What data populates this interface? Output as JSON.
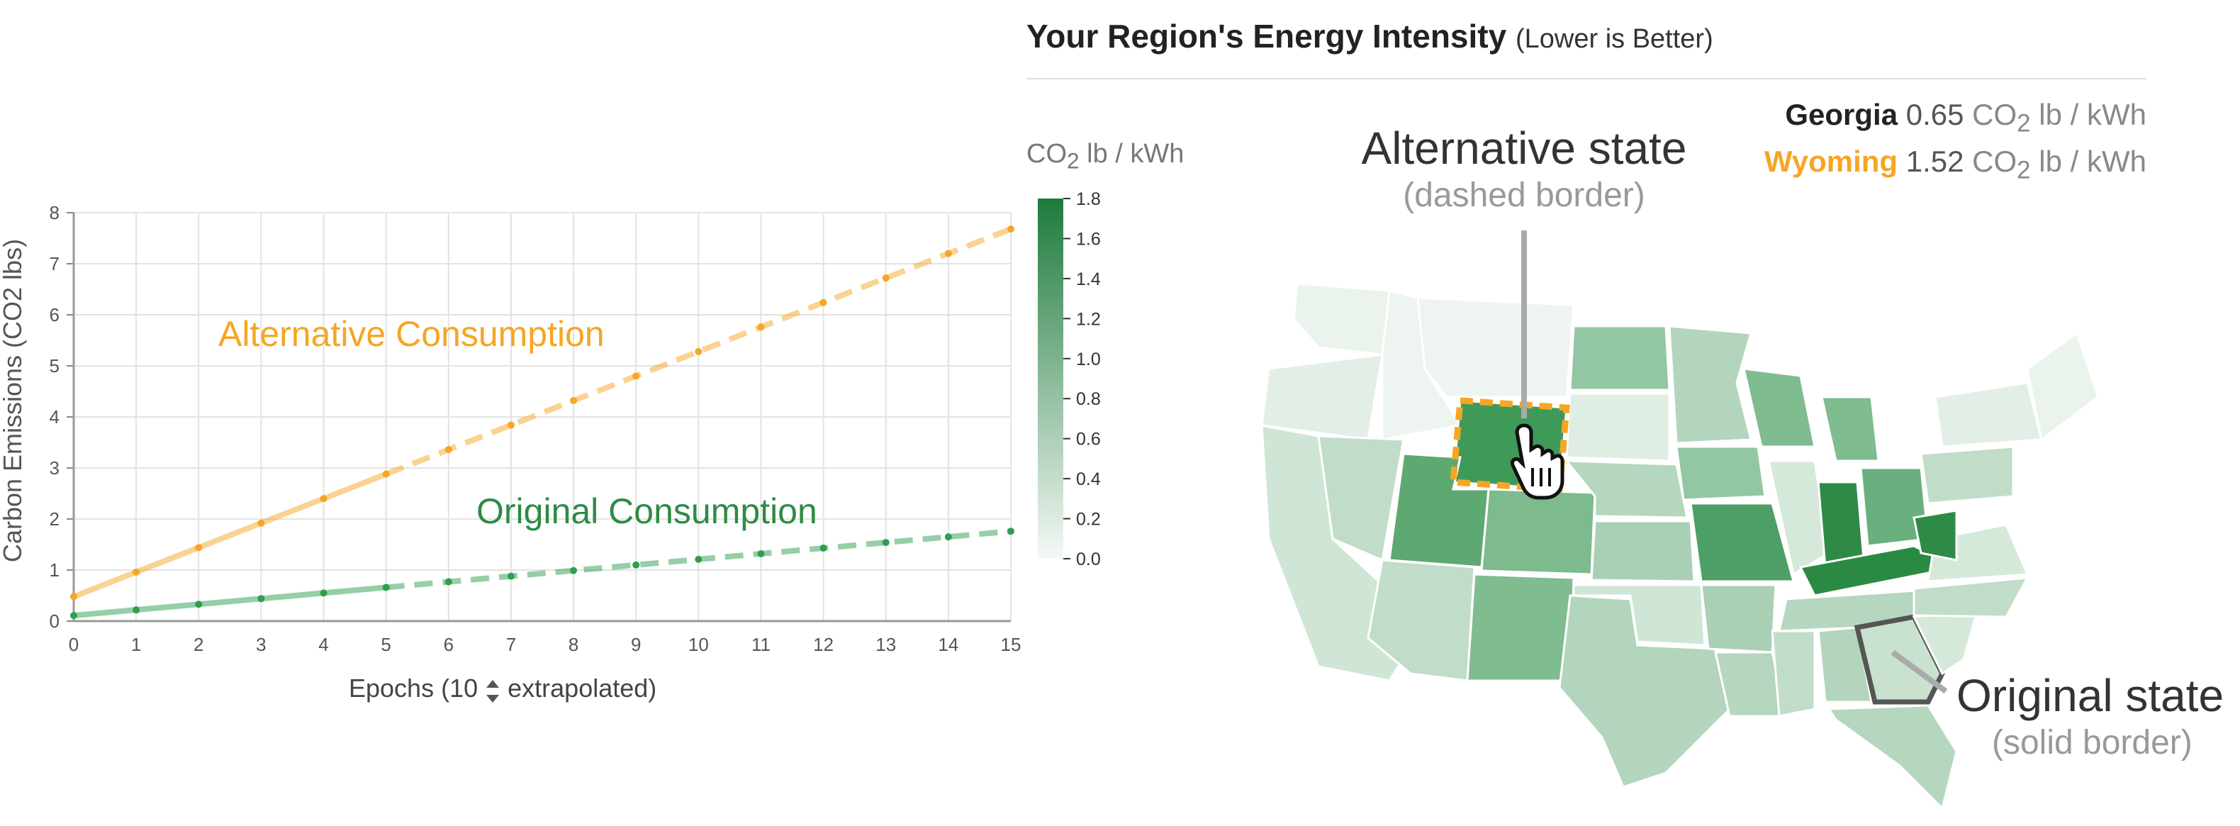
{
  "chart_data": [
    {
      "type": "line",
      "xlabel_prefix": "Epochs (10",
      "xlabel_suffix": "extrapolated)",
      "ylabel": "Carbon Emissions (CO2 lbs)",
      "x": [
        0,
        1,
        2,
        3,
        4,
        5,
        6,
        7,
        8,
        9,
        10,
        11,
        12,
        13,
        14,
        15
      ],
      "xlim": [
        0,
        15
      ],
      "ylim": [
        0,
        8
      ],
      "xticks": [
        "0",
        "1",
        "2",
        "3",
        "4",
        "5",
        "6",
        "7",
        "8",
        "9",
        "10",
        "11",
        "12",
        "13",
        "14",
        "15"
      ],
      "yticks": [
        "0",
        "1",
        "2",
        "3",
        "4",
        "5",
        "6",
        "7",
        "8"
      ],
      "measured_through_x": 5,
      "grid": true,
      "series": [
        {
          "name": "Alternative Consumption",
          "color": "#f5a623",
          "values": [
            0.48,
            0.96,
            1.44,
            1.92,
            2.4,
            2.88,
            3.36,
            3.84,
            4.32,
            4.8,
            5.28,
            5.76,
            6.24,
            6.72,
            7.2,
            7.68
          ]
        },
        {
          "name": "Original Consumption",
          "color": "#2e9e4f",
          "values": [
            0.11,
            0.22,
            0.33,
            0.44,
            0.55,
            0.66,
            0.77,
            0.88,
            0.99,
            1.1,
            1.21,
            1.32,
            1.43,
            1.54,
            1.65,
            1.76
          ]
        }
      ]
    },
    {
      "type": "heatmap",
      "title": "Your Region's Energy Intensity",
      "title_note": "(Lower is Better)",
      "colorbar_unit": "CO2 lb / kWh",
      "colorbar_range": [
        0,
        1.8
      ],
      "colorbar_ticks": [
        "1.8",
        "1.6",
        "1.4",
        "1.2",
        "1.0",
        "0.8",
        "0.6",
        "0.4",
        "0.2",
        "0.0"
      ],
      "colorbar_low": "#f5f9f6",
      "colorbar_high": "#1e7a3c",
      "states": [
        {
          "name": "Georgia",
          "value": 0.65,
          "unit": "CO2 lb / kWh",
          "role": "original"
        },
        {
          "name": "Wyoming",
          "value": 1.52,
          "unit": "CO2 lb / kWh",
          "role": "alternative"
        }
      ]
    }
  ],
  "header": {
    "title": "Your Region's Energy Intensity",
    "note": "(Lower is Better)"
  },
  "readouts": {
    "original": {
      "state": "Georgia",
      "value": "0.65",
      "unit_pre": "CO",
      "unit_sub": "2",
      "unit_post": " lb / kWh",
      "color": "#222222"
    },
    "alternative": {
      "state": "Wyoming",
      "value": "1.52",
      "unit_pre": "CO",
      "unit_sub": "2",
      "unit_post": " lb / kWh",
      "color": "#f5a623"
    }
  },
  "legend_unit": {
    "pre": "CO",
    "sub": "2",
    "post": " lb / kWh"
  },
  "callouts": {
    "alternative_title": "Alternative state",
    "alternative_sub": "(dashed border)",
    "original_title": "Original state",
    "original_sub": "(solid border)"
  },
  "icons": {
    "stepper": "up-down-stepper-icon",
    "cursor": "hand-pointer-icon"
  }
}
